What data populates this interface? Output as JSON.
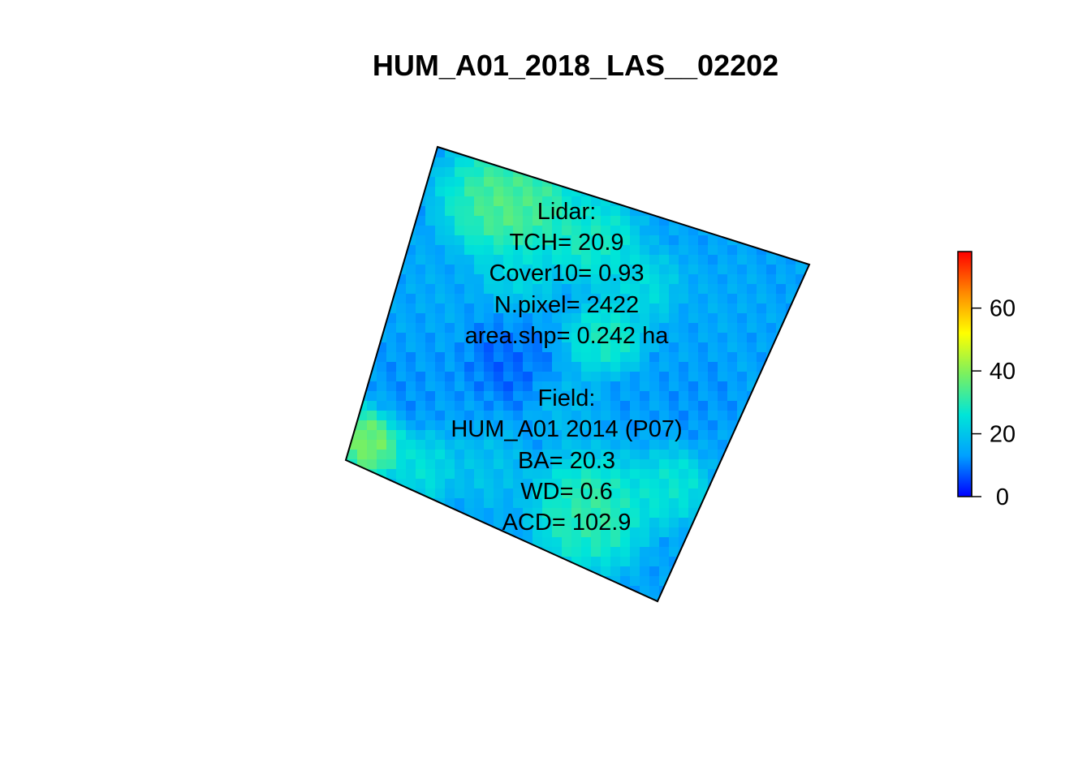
{
  "chart_data": {
    "type": "heatmap",
    "title": "HUM_A01_2018_LAS__02202",
    "color_scale": {
      "colors": [
        "#0000ff",
        "#00a0ff",
        "#00e5d8",
        "#7af060",
        "#ffff00",
        "#ff8800",
        "#ff0000"
      ],
      "range": [
        0,
        78
      ],
      "ticks": [
        0,
        20,
        40,
        60
      ],
      "tick_labels": [
        "0",
        "20",
        "40",
        "60"
      ]
    },
    "lidar_heading": "Lidar:",
    "lidar_stats": [
      "TCH= 20.9",
      "Cover10= 0.93",
      "N.pixel= 2422",
      "area.shp= 0.242 ha"
    ],
    "field_heading": "Field:",
    "field_stats": [
      "HUM_A01 2014 (P07)",
      "BA= 20.3",
      "WD= 0.6",
      "ACD= 102.9"
    ],
    "crowns": [
      {
        "u": 0.22,
        "v": 0.1,
        "r": 0.17,
        "value": 37
      },
      {
        "u": 0.45,
        "v": 0.12,
        "r": 0.12,
        "value": 30
      },
      {
        "u": 0.62,
        "v": 0.2,
        "r": 0.1,
        "value": 25
      },
      {
        "u": 0.82,
        "v": 0.16,
        "r": 0.1,
        "value": 15
      },
      {
        "u": 0.58,
        "v": 0.38,
        "r": 0.1,
        "value": 30
      },
      {
        "u": 0.35,
        "v": 0.55,
        "r": 0.12,
        "value": 8
      },
      {
        "u": 0.12,
        "v": 0.72,
        "r": 0.12,
        "value": 12
      },
      {
        "u": 0.55,
        "v": 0.6,
        "r": 0.09,
        "value": 18
      },
      {
        "u": 0.72,
        "v": 0.52,
        "r": 0.09,
        "value": 13
      },
      {
        "u": 0.88,
        "v": 0.45,
        "r": 0.1,
        "value": 12
      },
      {
        "u": 0.05,
        "v": 0.92,
        "r": 0.1,
        "value": 42
      },
      {
        "u": 0.22,
        "v": 0.92,
        "r": 0.1,
        "value": 26
      },
      {
        "u": 0.72,
        "v": 0.85,
        "r": 0.16,
        "value": 33
      },
      {
        "u": 0.9,
        "v": 0.7,
        "r": 0.1,
        "value": 28
      },
      {
        "u": 0.1,
        "v": 0.4,
        "r": 0.1,
        "value": 15
      },
      {
        "u": 0.4,
        "v": 0.85,
        "r": 0.1,
        "value": 20
      },
      {
        "u": 0.3,
        "v": 0.28,
        "r": 0.1,
        "value": 24
      }
    ]
  }
}
